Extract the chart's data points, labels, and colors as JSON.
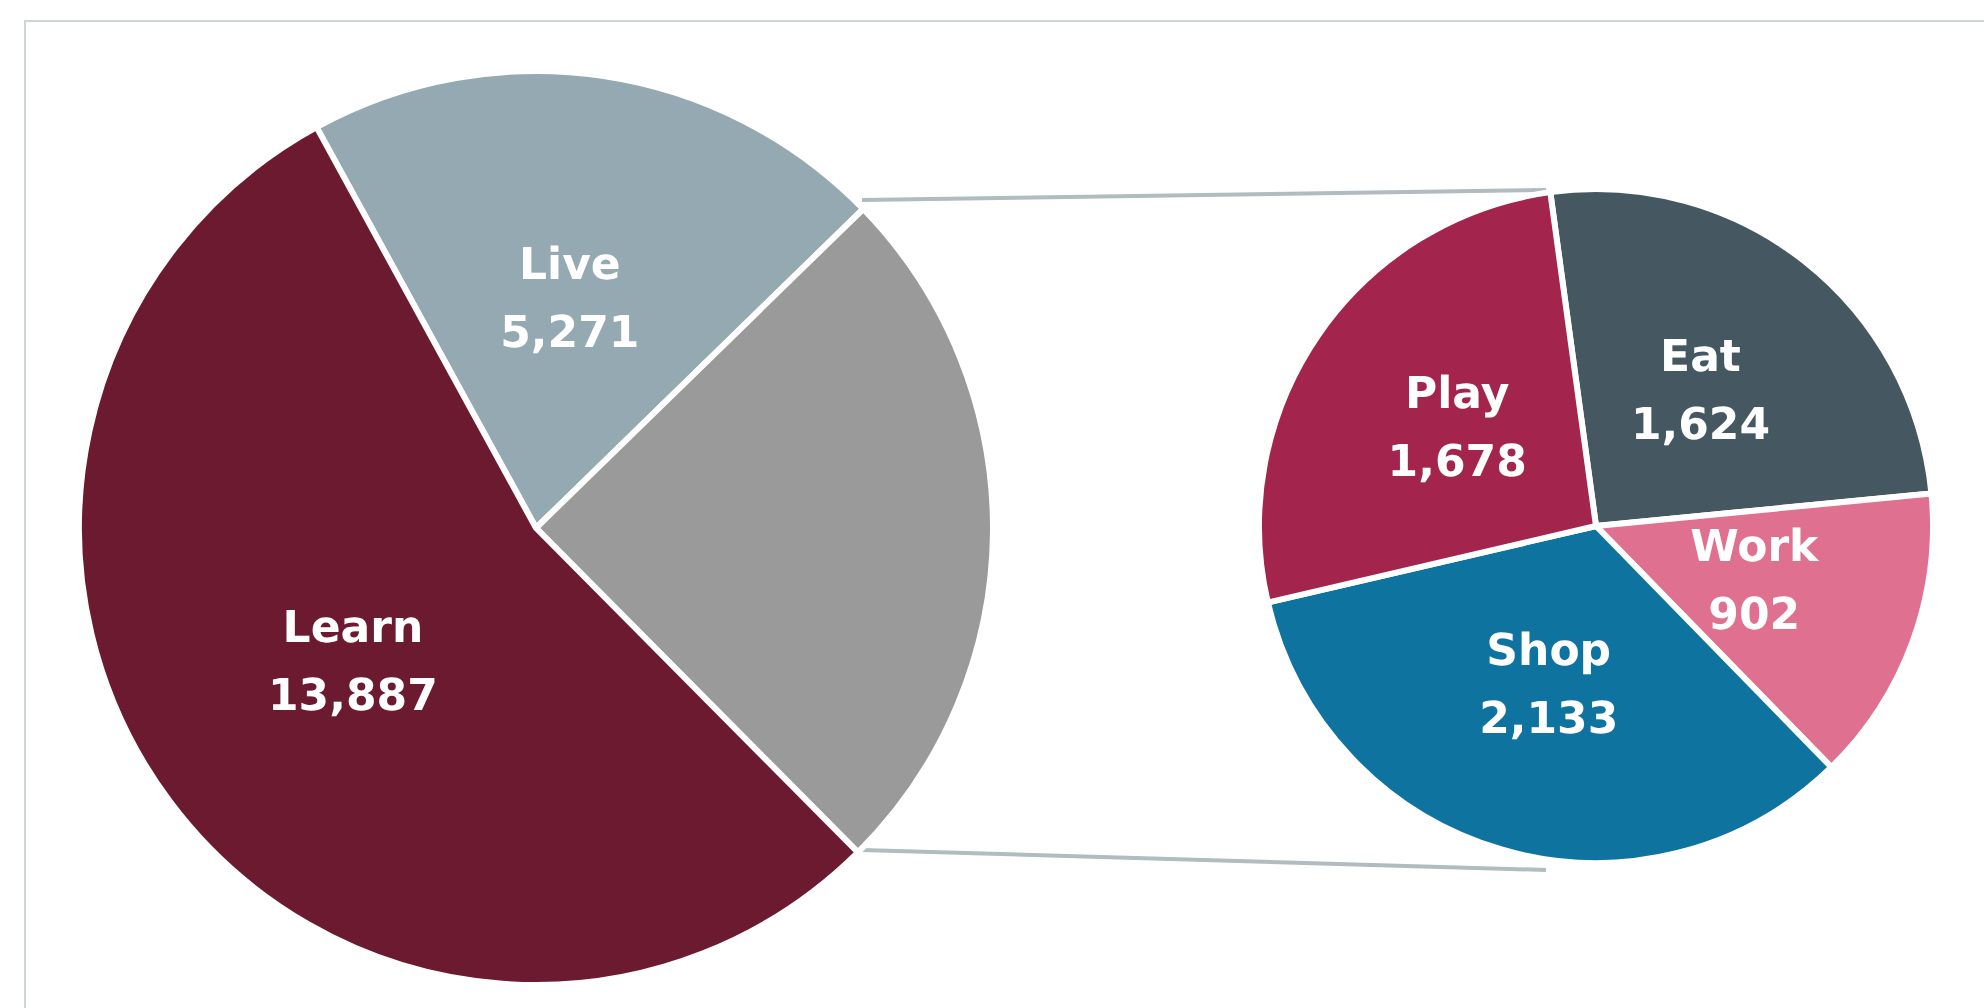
{
  "chart_data": [
    {
      "type": "pie",
      "categories": [
        "Live",
        null,
        "Learn"
      ],
      "values": [
        5271,
        6337,
        13887
      ],
      "colors": [
        "#94a9b1",
        "#9a9a9a",
        "#6b1a30"
      ],
      "value_labels": [
        "5,271",
        null,
        "13,887"
      ]
    },
    {
      "type": "pie",
      "categories": [
        "Eat",
        "Work",
        "Shop",
        "Play"
      ],
      "values": [
        1624,
        902,
        2133,
        1678
      ],
      "colors": [
        "#455862",
        "#e07090",
        "#0f73a0",
        "#a3244c"
      ],
      "value_labels": [
        "1,624",
        "902",
        "2,133",
        "1,678"
      ]
    }
  ]
}
